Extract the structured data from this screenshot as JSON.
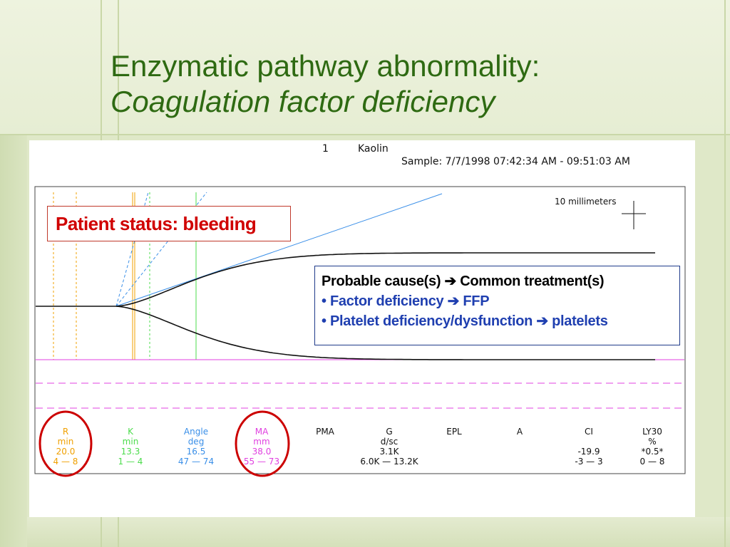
{
  "slide": {
    "title_line1": "Enzymatic pathway abnormality:",
    "title_line2": "Coagulation factor deficiency"
  },
  "chart_header": {
    "channel": "1",
    "activator": "Kaolin",
    "sample": "Sample: 7/7/1998 07:42:34 AM - 09:51:03 AM"
  },
  "chart_data": {
    "type": "line",
    "title": "",
    "scale_label": "10 millimeters",
    "annotations": {
      "patient_status": "Patient status: bleeding",
      "cause_heading": "Probable cause(s)",
      "treatment_heading": "Common treatment(s)",
      "items": [
        {
          "cause": "Factor deficiency",
          "treatment": "FFP"
        },
        {
          "cause": "Platelet deficiency/dysfunction",
          "treatment": "platelets"
        }
      ]
    },
    "parameters": [
      {
        "name": "R",
        "unit": "min",
        "value": "20.0",
        "range": "4 — 8",
        "color": "#f0a000",
        "circled": true
      },
      {
        "name": "K",
        "unit": "min",
        "value": "13.3",
        "range": "1 — 4",
        "color": "#4cdc4c",
        "circled": false
      },
      {
        "name": "Angle",
        "unit": "deg",
        "value": "16.5",
        "range": "47 — 74",
        "color": "#3a8fe8",
        "circled": false
      },
      {
        "name": "MA",
        "unit": "mm",
        "value": "38.0",
        "range": "55 — 73",
        "color": "#e040e0",
        "circled": true
      },
      {
        "name": "PMA",
        "unit": "",
        "value": "",
        "range": "",
        "color": "#111111",
        "circled": false
      },
      {
        "name": "G",
        "unit": "d/sc",
        "value": "3.1K",
        "range": "6.0K — 13.2K",
        "color": "#111111",
        "circled": false
      },
      {
        "name": "EPL",
        "unit": "",
        "value": "",
        "range": "",
        "color": "#111111",
        "circled": false
      },
      {
        "name": "A",
        "unit": "",
        "value": "",
        "range": "",
        "color": "#111111",
        "circled": false
      },
      {
        "name": "CI",
        "unit": "",
        "value": "-19.9",
        "range": "-3 — 3",
        "color": "#111111",
        "circled": false
      },
      {
        "name": "LY30",
        "unit": "%",
        "value": "*0.5*",
        "range": "0 — 8",
        "color": "#111111",
        "circled": false
      }
    ],
    "colors": {
      "tracing": "#111111",
      "R": "#f0a000",
      "K": "#4cdc4c",
      "angle": "#3a8fe8",
      "MA": "#e040e0",
      "circle": "#cc0000",
      "status_text": "#d00000",
      "cause_border": "#1f3b8a",
      "cause_items": "#1f3fb0",
      "title": "#2e6a12"
    }
  }
}
